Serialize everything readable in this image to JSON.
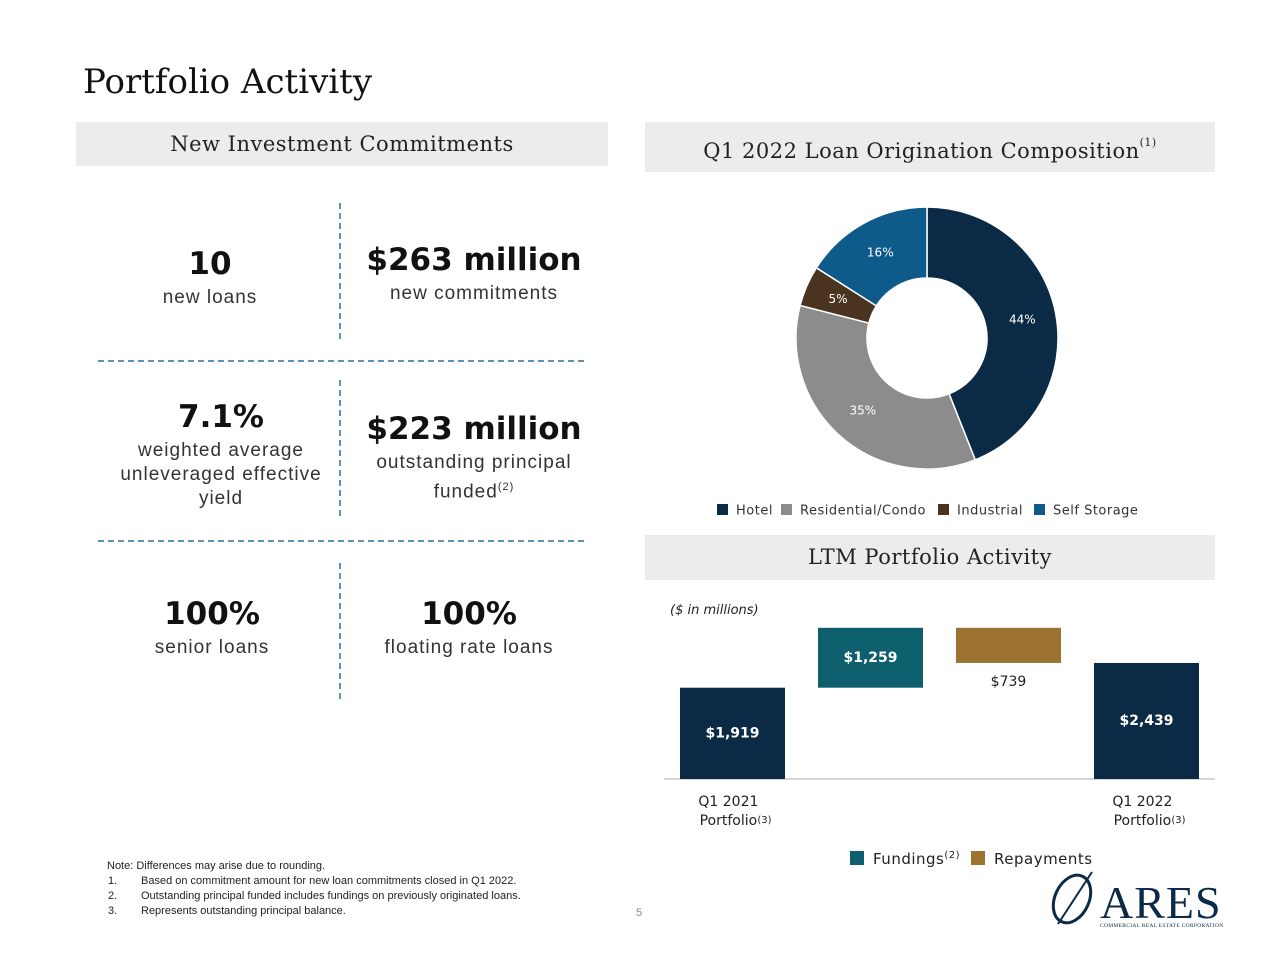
{
  "title": "Portfolio Activity",
  "commitments": {
    "header": "New Investment Commitments",
    "stats": [
      {
        "value": "10",
        "label": "new loans"
      },
      {
        "value": "$263 million",
        "label": "new commitments"
      },
      {
        "value": "7.1%",
        "label": "weighted average unleveraged effective yield"
      },
      {
        "value": "$223 million",
        "label": "outstanding principal funded",
        "note": "(2)"
      },
      {
        "value": "100%",
        "label": "senior loans"
      },
      {
        "value": "100%",
        "label": "floating rate loans"
      }
    ]
  },
  "chart_data": [
    {
      "type": "donut",
      "title": "Q1 2022 Loan Origination Composition",
      "title_note": "(1)",
      "categories": [
        "Hotel",
        "Residential/Condo",
        "Industrial",
        "Self Storage"
      ],
      "values": [
        44,
        35,
        5,
        16
      ],
      "value_labels": [
        "44%",
        "35%",
        "5%",
        "16%"
      ],
      "colors": [
        "#0b2a45",
        "#8c8c8c",
        "#4a3420",
        "#0e5a8a"
      ]
    },
    {
      "type": "waterfall",
      "title": "LTM Portfolio Activity",
      "subtitle": "($ in millions)",
      "categories": [
        "Q1 2021 Portfolio",
        null,
        null,
        "Q1 2022 Portfolio"
      ],
      "category_notes": [
        "(3)",
        null,
        null,
        "(3)"
      ],
      "kinds": [
        "total",
        "increase",
        "decrease",
        "total"
      ],
      "values": [
        1919,
        1259,
        739,
        2439
      ],
      "value_labels": [
        "$1,919",
        "$1,259",
        "$739",
        "$2,439"
      ],
      "ylim": [
        0,
        3300
      ],
      "total_color": "#0b2a45",
      "legend": [
        {
          "name": "Fundings",
          "note": "(2)",
          "color": "#0d5f6e"
        },
        {
          "name": "Repayments",
          "color": "#9c7230"
        }
      ]
    }
  ],
  "footnotes": {
    "intro": "Note: Differences may arise due to rounding.",
    "items": [
      {
        "number": "1.",
        "text": "Based on commitment amount for new loan commitments closed in Q1 2022."
      },
      {
        "number": "2.",
        "text": "Outstanding principal funded includes fundings on previously originated loans."
      },
      {
        "number": "3.",
        "text": "Represents outstanding principal balance."
      }
    ]
  },
  "page_number": "5",
  "logo": {
    "name": "ARES",
    "tagline": "COMMERCIAL REAL ESTATE CORPORATION"
  }
}
